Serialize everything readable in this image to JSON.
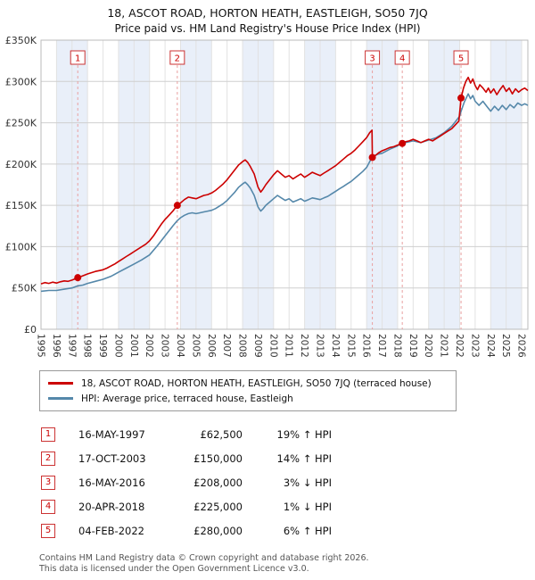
{
  "title": "18, ASCOT ROAD, HORTON HEATH, EASTLEIGH, SO50 7JQ",
  "subtitle": "Price paid vs. HM Land Registry's House Price Index (HPI)",
  "chart_data": {
    "type": "line",
    "ylim": [
      0,
      350000
    ],
    "x_range": [
      1995,
      2026.4
    ],
    "band_color": "#e9eff9",
    "grid_color": "#cfcfcf",
    "marker_line_color": "#e9a0a0",
    "marker_box_border": "#cc3333",
    "marker_box_text": "#cc0000",
    "y_ticks": [
      {
        "value": 0,
        "label": "£0"
      },
      {
        "value": 50000,
        "label": "£50K"
      },
      {
        "value": 100000,
        "label": "£100K"
      },
      {
        "value": 150000,
        "label": "£150K"
      },
      {
        "value": 200000,
        "label": "£200K"
      },
      {
        "value": 250000,
        "label": "£250K"
      },
      {
        "value": 300000,
        "label": "£300K"
      },
      {
        "value": 350000,
        "label": "£350K"
      }
    ],
    "x_ticks": [
      1995,
      1996,
      1997,
      1998,
      1999,
      2000,
      2001,
      2002,
      2003,
      2004,
      2005,
      2006,
      2007,
      2008,
      2009,
      2010,
      2011,
      2012,
      2013,
      2014,
      2015,
      2016,
      2017,
      2018,
      2019,
      2020,
      2021,
      2022,
      2023,
      2024,
      2025,
      2026
    ],
    "series": [
      {
        "name": "18, ASCOT ROAD, HORTON HEATH, EASTLEIGH, SO50 7JQ (terraced house)",
        "color": "#cc0000",
        "x": [
          1995,
          1995.25,
          1995.5,
          1995.75,
          1996,
          1996.25,
          1996.5,
          1996.75,
          1997,
          1997.2,
          1997.37,
          1997.6,
          1997.8,
          1998,
          1998.25,
          1998.5,
          1998.75,
          1999,
          1999.25,
          1999.5,
          1999.75,
          2000,
          2000.25,
          2000.5,
          2000.75,
          2001,
          2001.25,
          2001.5,
          2001.75,
          2002,
          2002.25,
          2002.5,
          2002.75,
          2003,
          2003.25,
          2003.5,
          2003.79,
          2004,
          2004.25,
          2004.5,
          2004.75,
          2005,
          2005.25,
          2005.5,
          2005.75,
          2006,
          2006.25,
          2006.5,
          2006.75,
          2007,
          2007.25,
          2007.5,
          2007.75,
          2008,
          2008.17,
          2008.33,
          2008.5,
          2008.75,
          2009,
          2009.17,
          2009.33,
          2009.5,
          2009.75,
          2010,
          2010.25,
          2010.5,
          2010.75,
          2011,
          2011.25,
          2011.5,
          2011.75,
          2012,
          2012.25,
          2012.5,
          2012.75,
          2013,
          2013.25,
          2013.5,
          2013.75,
          2014,
          2014.25,
          2014.5,
          2014.75,
          2015,
          2015.25,
          2015.5,
          2015.75,
          2016,
          2016.2,
          2016.35,
          2016.37,
          2016.6,
          2016.8,
          2017,
          2017.25,
          2017.5,
          2017.75,
          2018,
          2018.3,
          2018.5,
          2018.75,
          2019,
          2019.25,
          2019.5,
          2019.75,
          2020,
          2020.25,
          2020.5,
          2020.75,
          2021,
          2021.25,
          2021.5,
          2021.75,
          2021.95,
          2022.09,
          2022.25,
          2022.4,
          2022.55,
          2022.7,
          2022.85,
          2023,
          2023.15,
          2023.3,
          2023.5,
          2023.7,
          2023.85,
          2024,
          2024.2,
          2024.4,
          2024.6,
          2024.8,
          2025,
          2025.2,
          2025.4,
          2025.6,
          2025.8,
          2026,
          2026.2,
          2026.4
        ],
        "values": [
          55000,
          56500,
          55500,
          57000,
          56000,
          57500,
          58500,
          58000,
          59500,
          61000,
          62500,
          64000,
          65500,
          67000,
          68500,
          70000,
          71000,
          72000,
          74000,
          76500,
          79000,
          82000,
          85000,
          88000,
          91000,
          94000,
          97000,
          100000,
          103000,
          107000,
          113000,
          120000,
          127000,
          133000,
          138000,
          143000,
          150000,
          153000,
          157000,
          160000,
          159000,
          158000,
          160000,
          162000,
          163000,
          165000,
          168000,
          172000,
          176000,
          181000,
          187000,
          193000,
          199000,
          203000,
          205000,
          202000,
          197000,
          188000,
          172000,
          166000,
          170000,
          175000,
          181000,
          187000,
          192000,
          188000,
          184000,
          186000,
          182000,
          185000,
          188000,
          184000,
          187000,
          190000,
          188000,
          186000,
          189000,
          192000,
          195000,
          198000,
          202000,
          206000,
          210000,
          213000,
          217000,
          222000,
          227000,
          232000,
          238000,
          241000,
          208000,
          211000,
          214000,
          216000,
          218000,
          220000,
          221000,
          223000,
          225000,
          227000,
          228000,
          230000,
          228000,
          226000,
          228000,
          230000,
          228000,
          231000,
          234000,
          237000,
          240000,
          243000,
          248000,
          252000,
          280000,
          292000,
          300000,
          305000,
          298000,
          303000,
          295000,
          290000,
          296000,
          292000,
          287000,
          292000,
          286000,
          291000,
          284000,
          290000,
          295000,
          288000,
          292000,
          285000,
          291000,
          287000,
          290000,
          292000,
          289000
        ]
      },
      {
        "name": "HPI: Average price, terraced house, Eastleigh",
        "color": "#5588aa",
        "x": [
          1995,
          1995.5,
          1996,
          1996.5,
          1997,
          1997.37,
          1997.7,
          1998,
          1998.5,
          1999,
          1999.5,
          2000,
          2000.5,
          2001,
          2001.5,
          2002,
          2002.5,
          2003,
          2003.25,
          2003.5,
          2003.79,
          2004,
          2004.25,
          2004.5,
          2004.75,
          2005,
          2005.25,
          2005.5,
          2005.75,
          2006,
          2006.25,
          2006.5,
          2006.75,
          2007,
          2007.25,
          2007.5,
          2007.75,
          2008,
          2008.17,
          2008.33,
          2008.5,
          2008.75,
          2009,
          2009.17,
          2009.33,
          2009.5,
          2009.75,
          2010,
          2010.25,
          2010.5,
          2010.75,
          2011,
          2011.25,
          2011.5,
          2011.75,
          2012,
          2012.25,
          2012.5,
          2012.75,
          2013,
          2013.25,
          2013.5,
          2013.75,
          2014,
          2014.25,
          2014.5,
          2014.75,
          2015,
          2015.25,
          2015.5,
          2015.75,
          2016,
          2016.37,
          2016.75,
          2017,
          2017.5,
          2018,
          2018.3,
          2018.5,
          2019,
          2019.5,
          2020,
          2020.5,
          2021,
          2021.5,
          2022,
          2022.09,
          2022.3,
          2022.55,
          2022.7,
          2022.85,
          2023,
          2023.25,
          2023.5,
          2023.75,
          2024,
          2024.25,
          2024.5,
          2024.75,
          2025,
          2025.25,
          2025.5,
          2025.75,
          2026,
          2026.2,
          2026.4
        ],
        "values": [
          46000,
          47000,
          47000,
          48500,
          50000,
          52500,
          53500,
          55500,
          58000,
          60500,
          64000,
          69000,
          74000,
          79000,
          84000,
          90000,
          101000,
          113000,
          119000,
          125000,
          131500,
          135000,
          138000,
          140000,
          141000,
          140000,
          141000,
          142000,
          143000,
          144000,
          146000,
          149000,
          152000,
          156000,
          161000,
          166000,
          172000,
          176000,
          178000,
          175000,
          171000,
          162000,
          148000,
          143000,
          146000,
          150000,
          154000,
          158000,
          162000,
          159000,
          156000,
          158000,
          154000,
          156000,
          158000,
          155000,
          157000,
          159000,
          158000,
          157000,
          159000,
          161000,
          164000,
          167000,
          170000,
          173000,
          176000,
          179000,
          183000,
          187000,
          191000,
          196000,
          209000,
          212000,
          213000,
          218000,
          222000,
          227000,
          226000,
          228000,
          226000,
          229000,
          232000,
          238000,
          246000,
          258000,
          264000,
          275000,
          285000,
          279000,
          283000,
          276000,
          271000,
          276000,
          270000,
          264000,
          270000,
          265000,
          271000,
          266000,
          272000,
          268000,
          274000,
          271000,
          273000,
          271000
        ]
      }
    ],
    "sale_markers": [
      {
        "label": "1",
        "x": 1997.37,
        "value": 62500
      },
      {
        "label": "2",
        "x": 2003.79,
        "value": 150000
      },
      {
        "label": "3",
        "x": 2016.37,
        "value": 208000
      },
      {
        "label": "4",
        "x": 2018.3,
        "value": 225000
      },
      {
        "label": "5",
        "x": 2022.09,
        "value": 280000
      }
    ]
  },
  "legend": {
    "property_label": "18, ASCOT ROAD, HORTON HEATH, EASTLEIGH, SO50 7JQ (terraced house)",
    "hpi_label": "HPI: Average price, terraced house, Eastleigh"
  },
  "transactions": [
    {
      "num": "1",
      "date": "16-MAY-1997",
      "price": "£62,500",
      "hpi": "19% ↑ HPI"
    },
    {
      "num": "2",
      "date": "17-OCT-2003",
      "price": "£150,000",
      "hpi": "14% ↑ HPI"
    },
    {
      "num": "3",
      "date": "16-MAY-2016",
      "price": "£208,000",
      "hpi": "3% ↓ HPI"
    },
    {
      "num": "4",
      "date": "20-APR-2018",
      "price": "£225,000",
      "hpi": "1% ↓ HPI"
    },
    {
      "num": "5",
      "date": "04-FEB-2022",
      "price": "£280,000",
      "hpi": "6% ↑ HPI"
    }
  ],
  "footer": {
    "line1": "Contains HM Land Registry data © Crown copyright and database right 2026.",
    "line2": "This data is licensed under the Open Government Licence v3.0."
  }
}
